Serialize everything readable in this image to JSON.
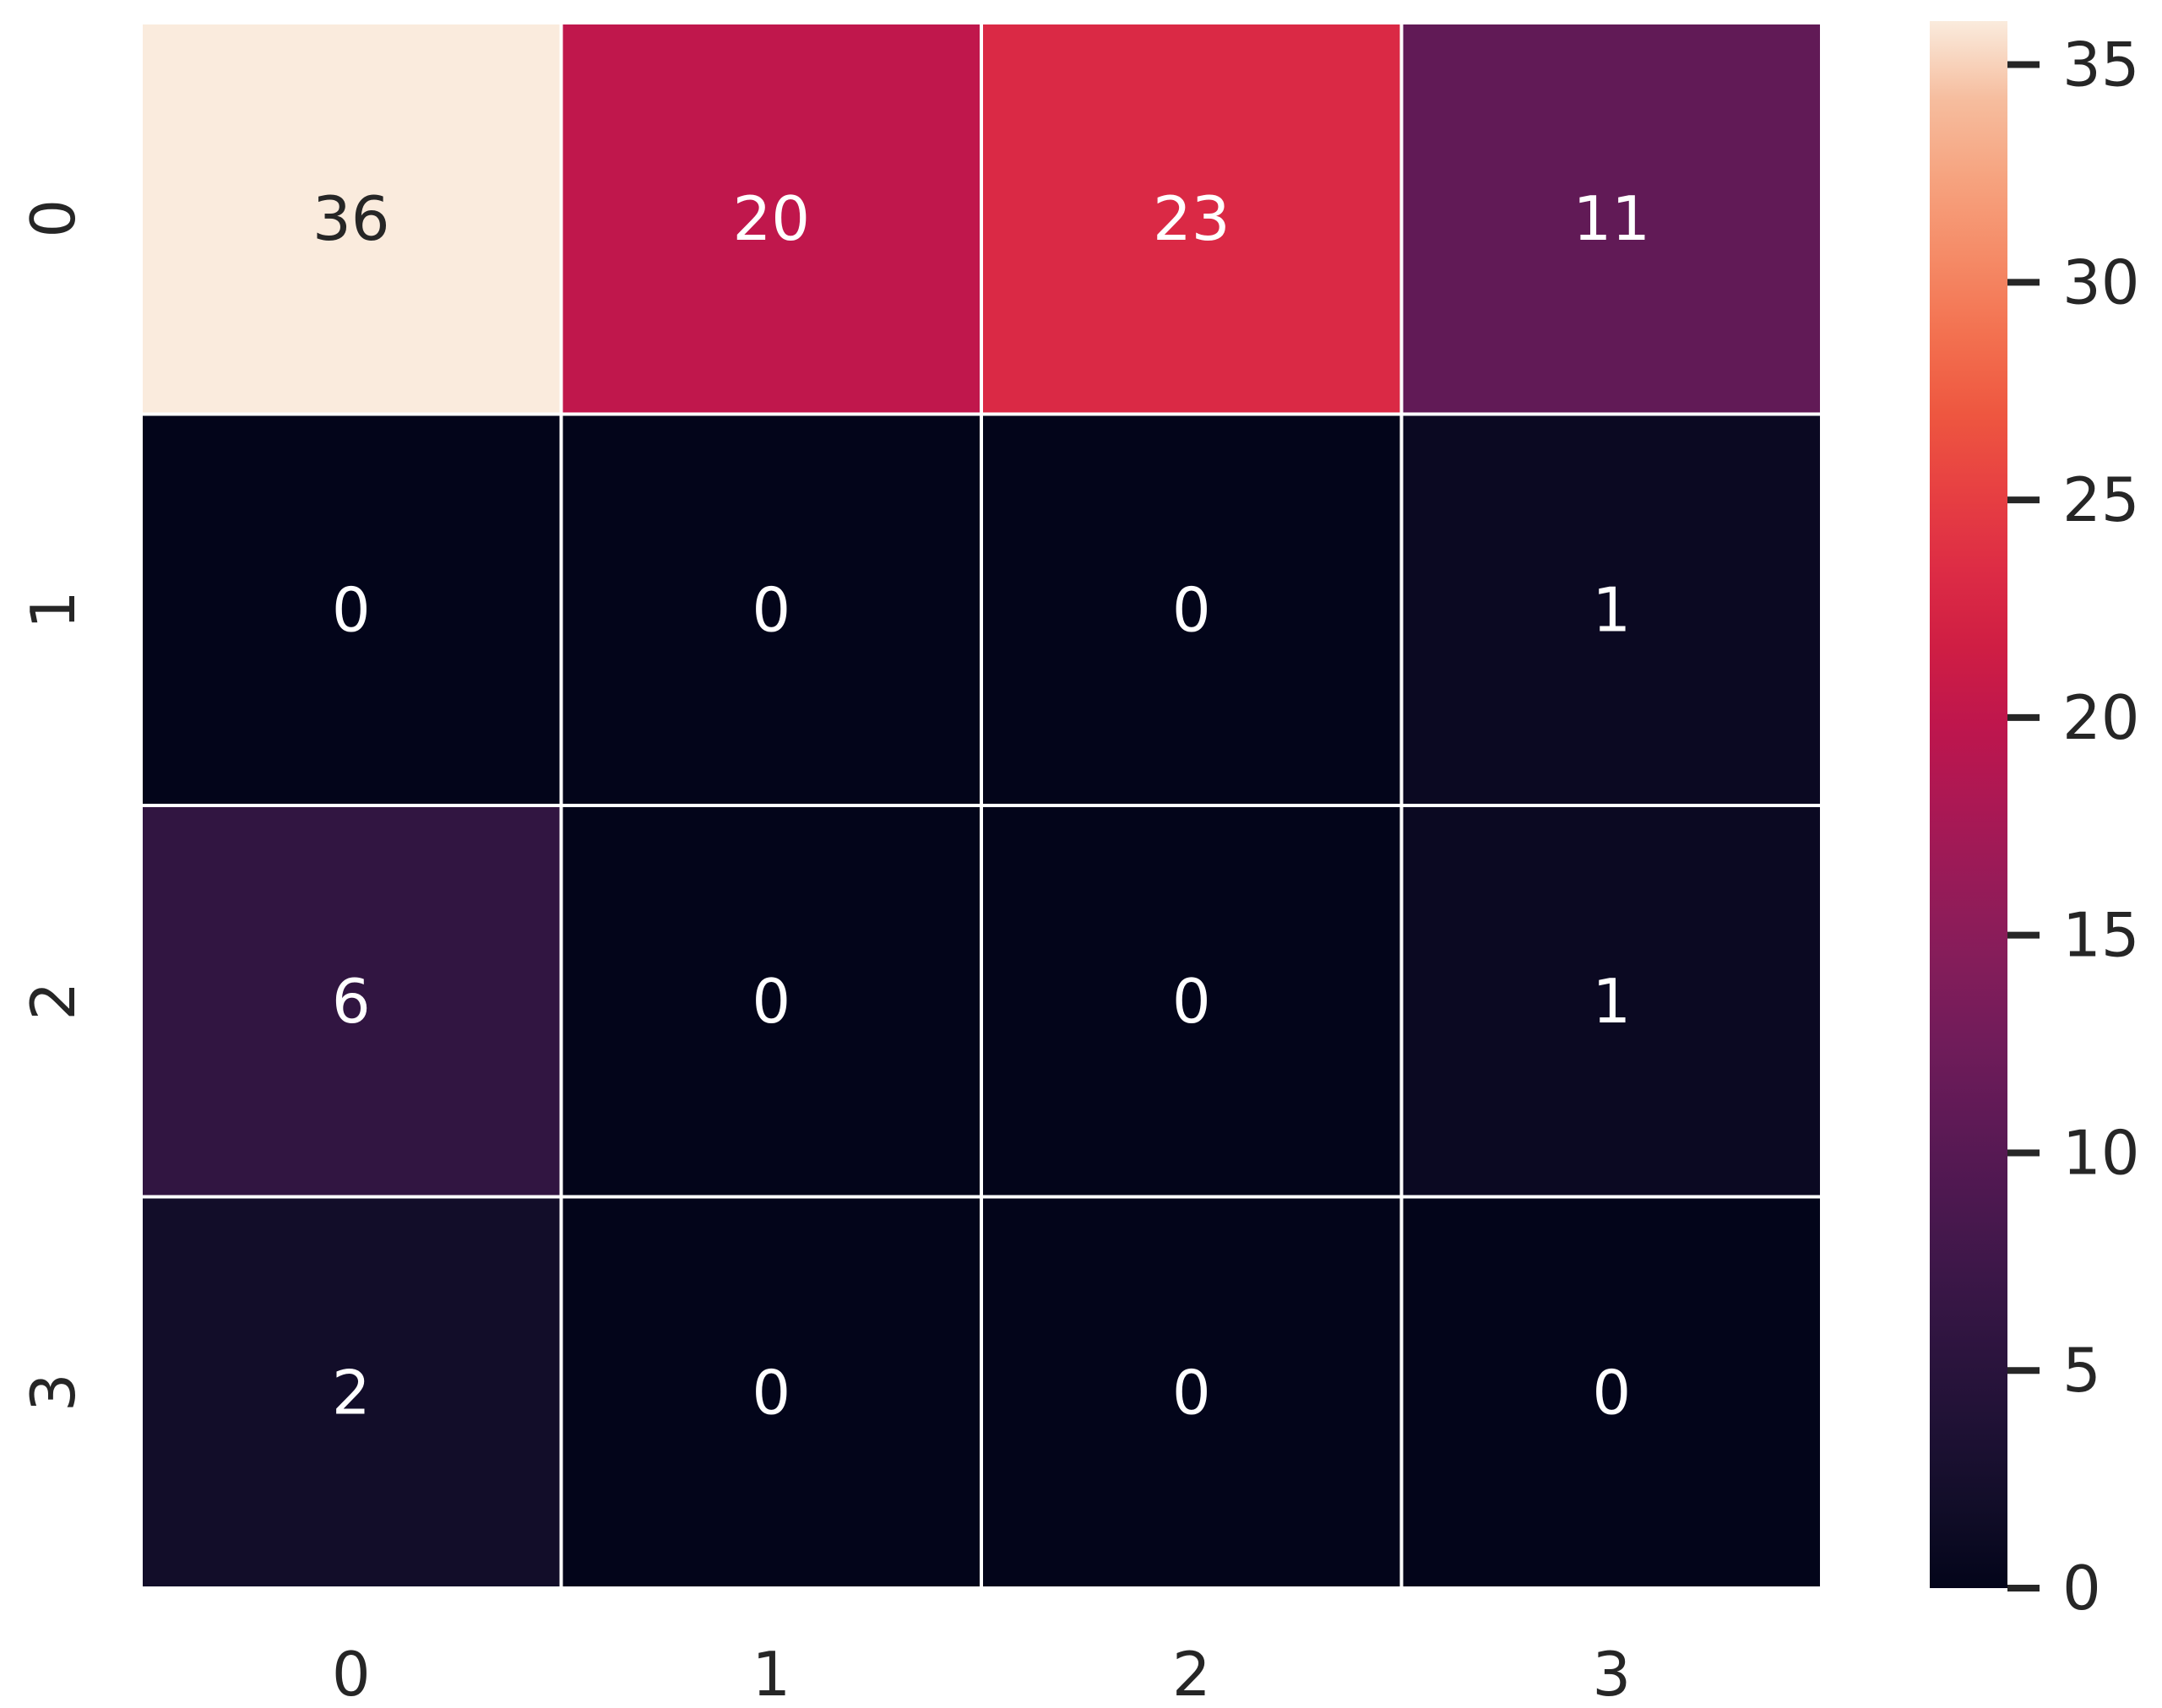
{
  "chart_data": {
    "type": "heatmap",
    "title": "",
    "xlabel": "",
    "ylabel": "",
    "x_categories": [
      "0",
      "1",
      "2",
      "3"
    ],
    "y_categories": [
      "0",
      "1",
      "2",
      "3"
    ],
    "values": [
      [
        36,
        20,
        23,
        11
      ],
      [
        0,
        0,
        0,
        1
      ],
      [
        6,
        0,
        0,
        1
      ],
      [
        2,
        0,
        0,
        0
      ]
    ],
    "annotations": true,
    "colormap": "rocket",
    "colorbar": {
      "range": [
        0,
        36
      ],
      "ticks": [
        0,
        5,
        10,
        15,
        20,
        25,
        30,
        35
      ]
    },
    "colors": {
      "cell_border": "#ffffff",
      "text_dark": "#262626",
      "text_light": "#ffffff",
      "tick_color": "#262626"
    }
  }
}
